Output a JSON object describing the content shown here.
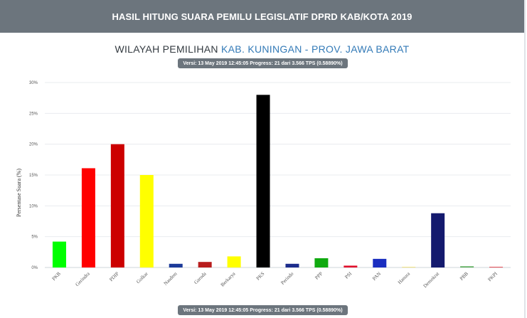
{
  "header": {
    "title": "HASIL HITUNG SUARA PEMILU LEGISLATIF DPRD KAB/KOTA 2019"
  },
  "region": {
    "prefix": "WILAYAH PEMILIHAN",
    "name": "KAB. KUNINGAN - PROV. JAWA BARAT"
  },
  "status": {
    "version_text": "Versi: 13 May 2019 12:45:05 Progress: 21 dari 3.566 TPS (0.58890%)"
  },
  "chart_data": {
    "type": "bar",
    "title": "",
    "xlabel": "",
    "ylabel": "Persentase Suara (%)",
    "ylim": [
      0,
      30
    ],
    "yticks": [
      0,
      5,
      10,
      15,
      20,
      25,
      30
    ],
    "ytick_labels": [
      "0%",
      "5%",
      "10%",
      "15%",
      "20%",
      "25%",
      "30%"
    ],
    "grid": true,
    "legend": "none",
    "categories": [
      "PKB",
      "Gerindra",
      "PDIP",
      "Golkar",
      "Nasdem",
      "Garuda",
      "Berkarya",
      "PKS",
      "Perindo",
      "PPP",
      "PSI",
      "PAN",
      "Hanura",
      "Demokrat",
      "PBB",
      "PKPI"
    ],
    "values": [
      4.2,
      16.1,
      20.0,
      15.0,
      0.6,
      0.9,
      1.8,
      28.0,
      0.6,
      1.5,
      0.3,
      1.4,
      0.1,
      8.8,
      0.2,
      0.1
    ],
    "colors": [
      "#00ff00",
      "#ff0000",
      "#cc0000",
      "#ffff00",
      "#1c3a99",
      "#b81d1d",
      "#ffff00",
      "#000000",
      "#1c2c8c",
      "#10aa10",
      "#e0102c",
      "#1a2ec0",
      "#f0e070",
      "#141a6e",
      "#60b060",
      "#e0303a"
    ]
  }
}
